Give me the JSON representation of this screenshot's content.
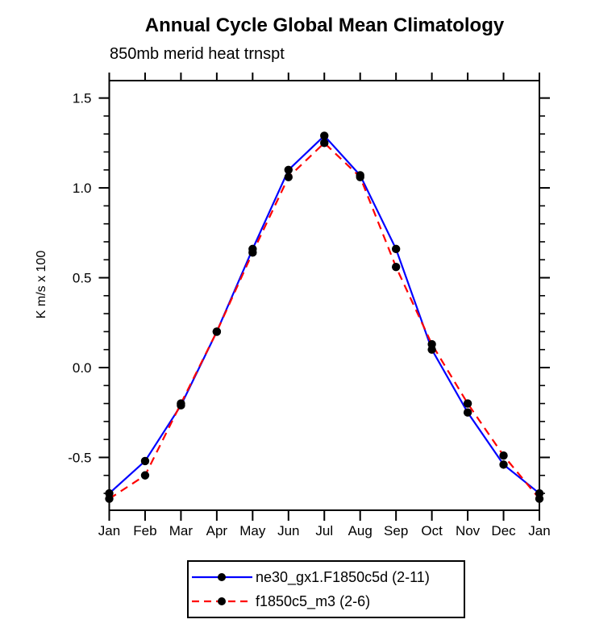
{
  "title": "Annual Cycle Global Mean Climatology",
  "subtitle": "850mb merid heat trnspt",
  "ylabel": "K m/s x 100",
  "colors": {
    "series1": "#0000ff",
    "series2": "#ff0000",
    "marker": "#000000",
    "axis": "#000000",
    "background": "#ffffff"
  },
  "chart_data": {
    "type": "line",
    "title": "Annual Cycle Global Mean Climatology",
    "subtitle": "850mb merid heat trnspt",
    "xlabel": "",
    "ylabel": "K m/s x 100",
    "categories": [
      "Jan",
      "Feb",
      "Mar",
      "Apr",
      "May",
      "Jun",
      "Jul",
      "Aug",
      "Sep",
      "Oct",
      "Nov",
      "Dec",
      "Jan"
    ],
    "series": [
      {
        "name": "ne30_gx1.F1850c5d (2-11)",
        "color": "#0000ff",
        "line_style": "solid",
        "marker": "filled-circle",
        "marker_color": "#000000",
        "values": [
          -0.7,
          -0.52,
          -0.21,
          0.2,
          0.66,
          1.1,
          1.29,
          1.07,
          0.66,
          0.1,
          -0.25,
          -0.54,
          -0.7
        ]
      },
      {
        "name": "f1850c5_m3 (2-6)",
        "color": "#ff0000",
        "line_style": "dashed",
        "marker": "filled-circle",
        "marker_color": "#000000",
        "values": [
          -0.73,
          -0.6,
          -0.2,
          0.2,
          0.64,
          1.06,
          1.25,
          1.06,
          0.56,
          0.13,
          -0.2,
          -0.49,
          -0.73
        ]
      }
    ],
    "ylim": [
      -0.794,
      1.597
    ],
    "ytick_major_values": [
      1.5,
      1.0,
      0.5,
      0.0,
      -0.5
    ],
    "ytick_major_labels": [
      "1.5",
      "1.0",
      "0.5",
      "0.0",
      "-0.5"
    ],
    "ytick_minor_interval": 0.1,
    "grid": false,
    "legend_position": "bottom-center"
  }
}
